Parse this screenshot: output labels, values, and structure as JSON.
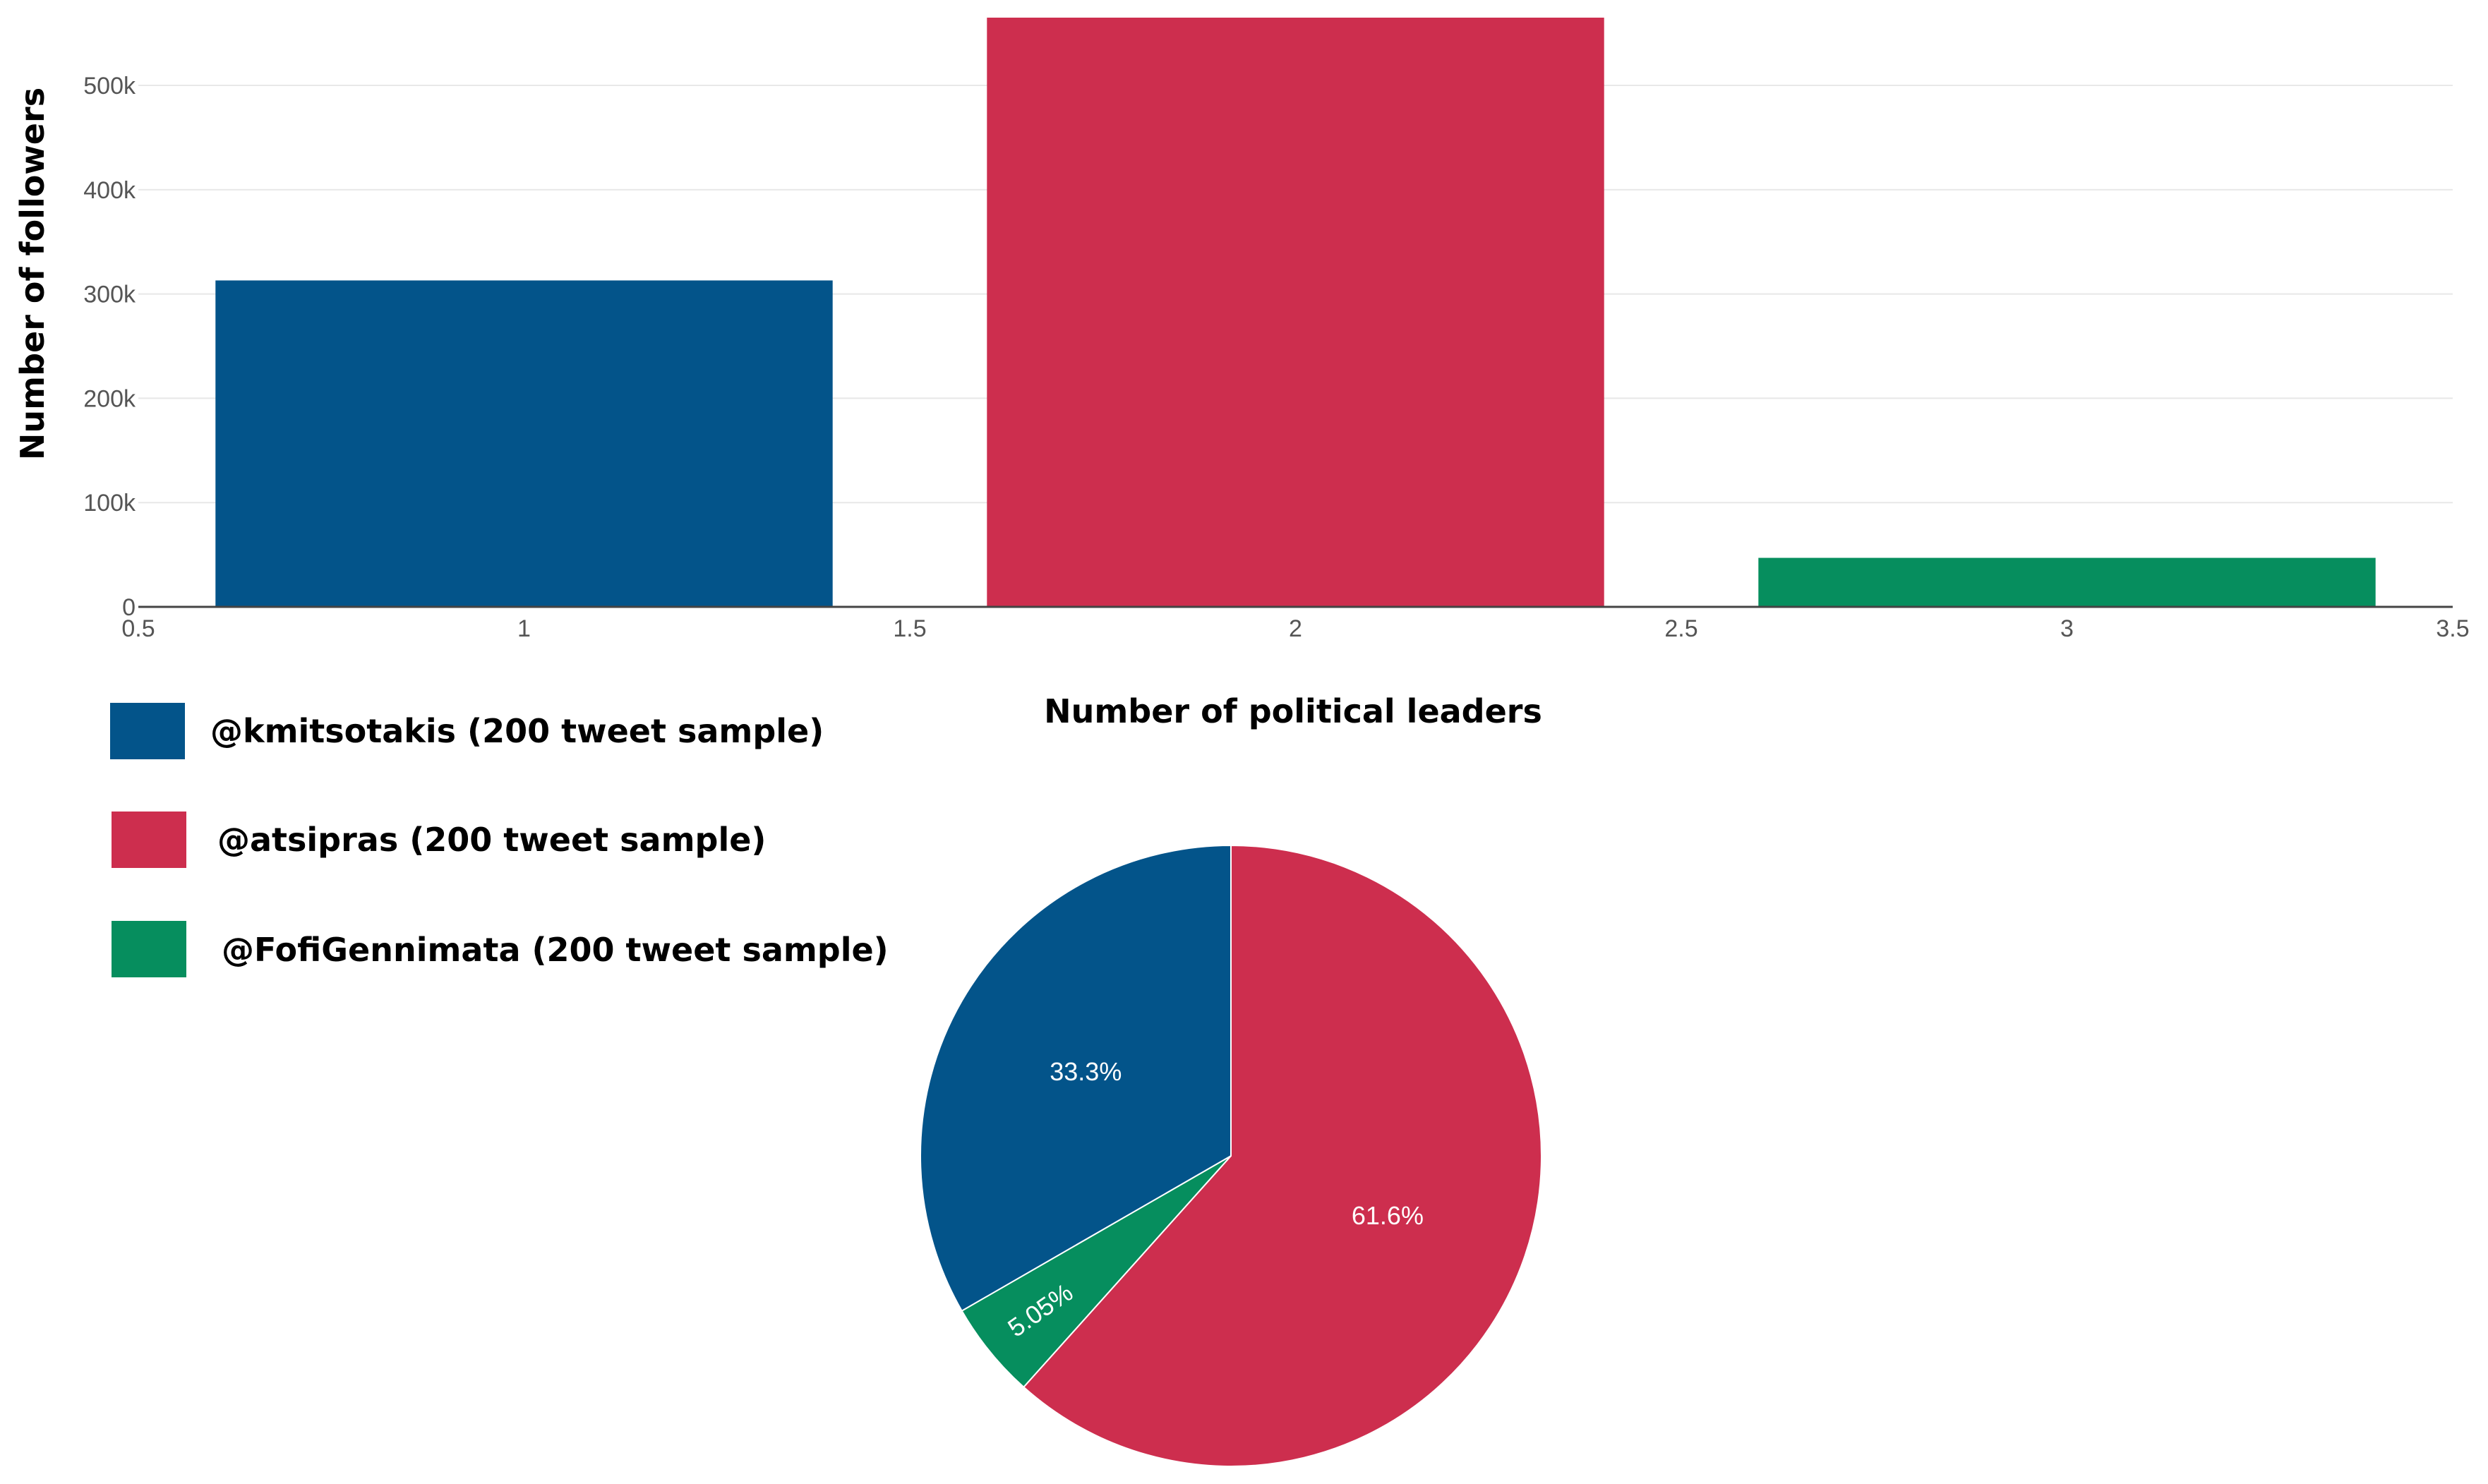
{
  "chart_data": [
    {
      "type": "bar",
      "xlabel": "Number of political leaders",
      "ylabel": "Number of followers",
      "xlim": [
        0.5,
        3.5
      ],
      "ylim": [
        0,
        565000
      ],
      "x_ticks": [
        "0.5",
        "1",
        "1.5",
        "2",
        "2.5",
        "3",
        "3.5"
      ],
      "x_tick_values": [
        0.5,
        1,
        1.5,
        2,
        2.5,
        3,
        3.5
      ],
      "y_ticks": [
        "0",
        "100k",
        "200k",
        "300k",
        "400k",
        "500k"
      ],
      "y_tick_values": [
        0,
        100000,
        200000,
        300000,
        400000,
        500000
      ],
      "grid": true,
      "legend_position": "bottom-left",
      "series": [
        {
          "name": "@kmitsotakis (200 tweet sample)",
          "x": 1,
          "value": 313000,
          "color": "#03548a"
        },
        {
          "name": "@atsipras (200 tweet sample)",
          "x": 2,
          "value": 567000,
          "color": "#cd2e4e"
        },
        {
          "name": "@FofiGennimata (200 tweet sample)",
          "x": 3,
          "value": 47000,
          "color": "#068e5e"
        }
      ]
    },
    {
      "type": "pie",
      "slices": [
        {
          "name": "@kmitsotakis (200 tweet sample)",
          "percent": 33.3,
          "label": "33.3%",
          "color": "#03548a"
        },
        {
          "name": "@atsipras (200 tweet sample)",
          "percent": 61.6,
          "label": "61.6%",
          "color": "#cd2e4e"
        },
        {
          "name": "@FofiGennimata (200 tweet sample)",
          "percent": 5.05,
          "label": "5.05%",
          "color": "#068e5e"
        }
      ],
      "order": [
        1,
        2,
        0
      ],
      "direction": "clockwise",
      "start": "top"
    }
  ]
}
